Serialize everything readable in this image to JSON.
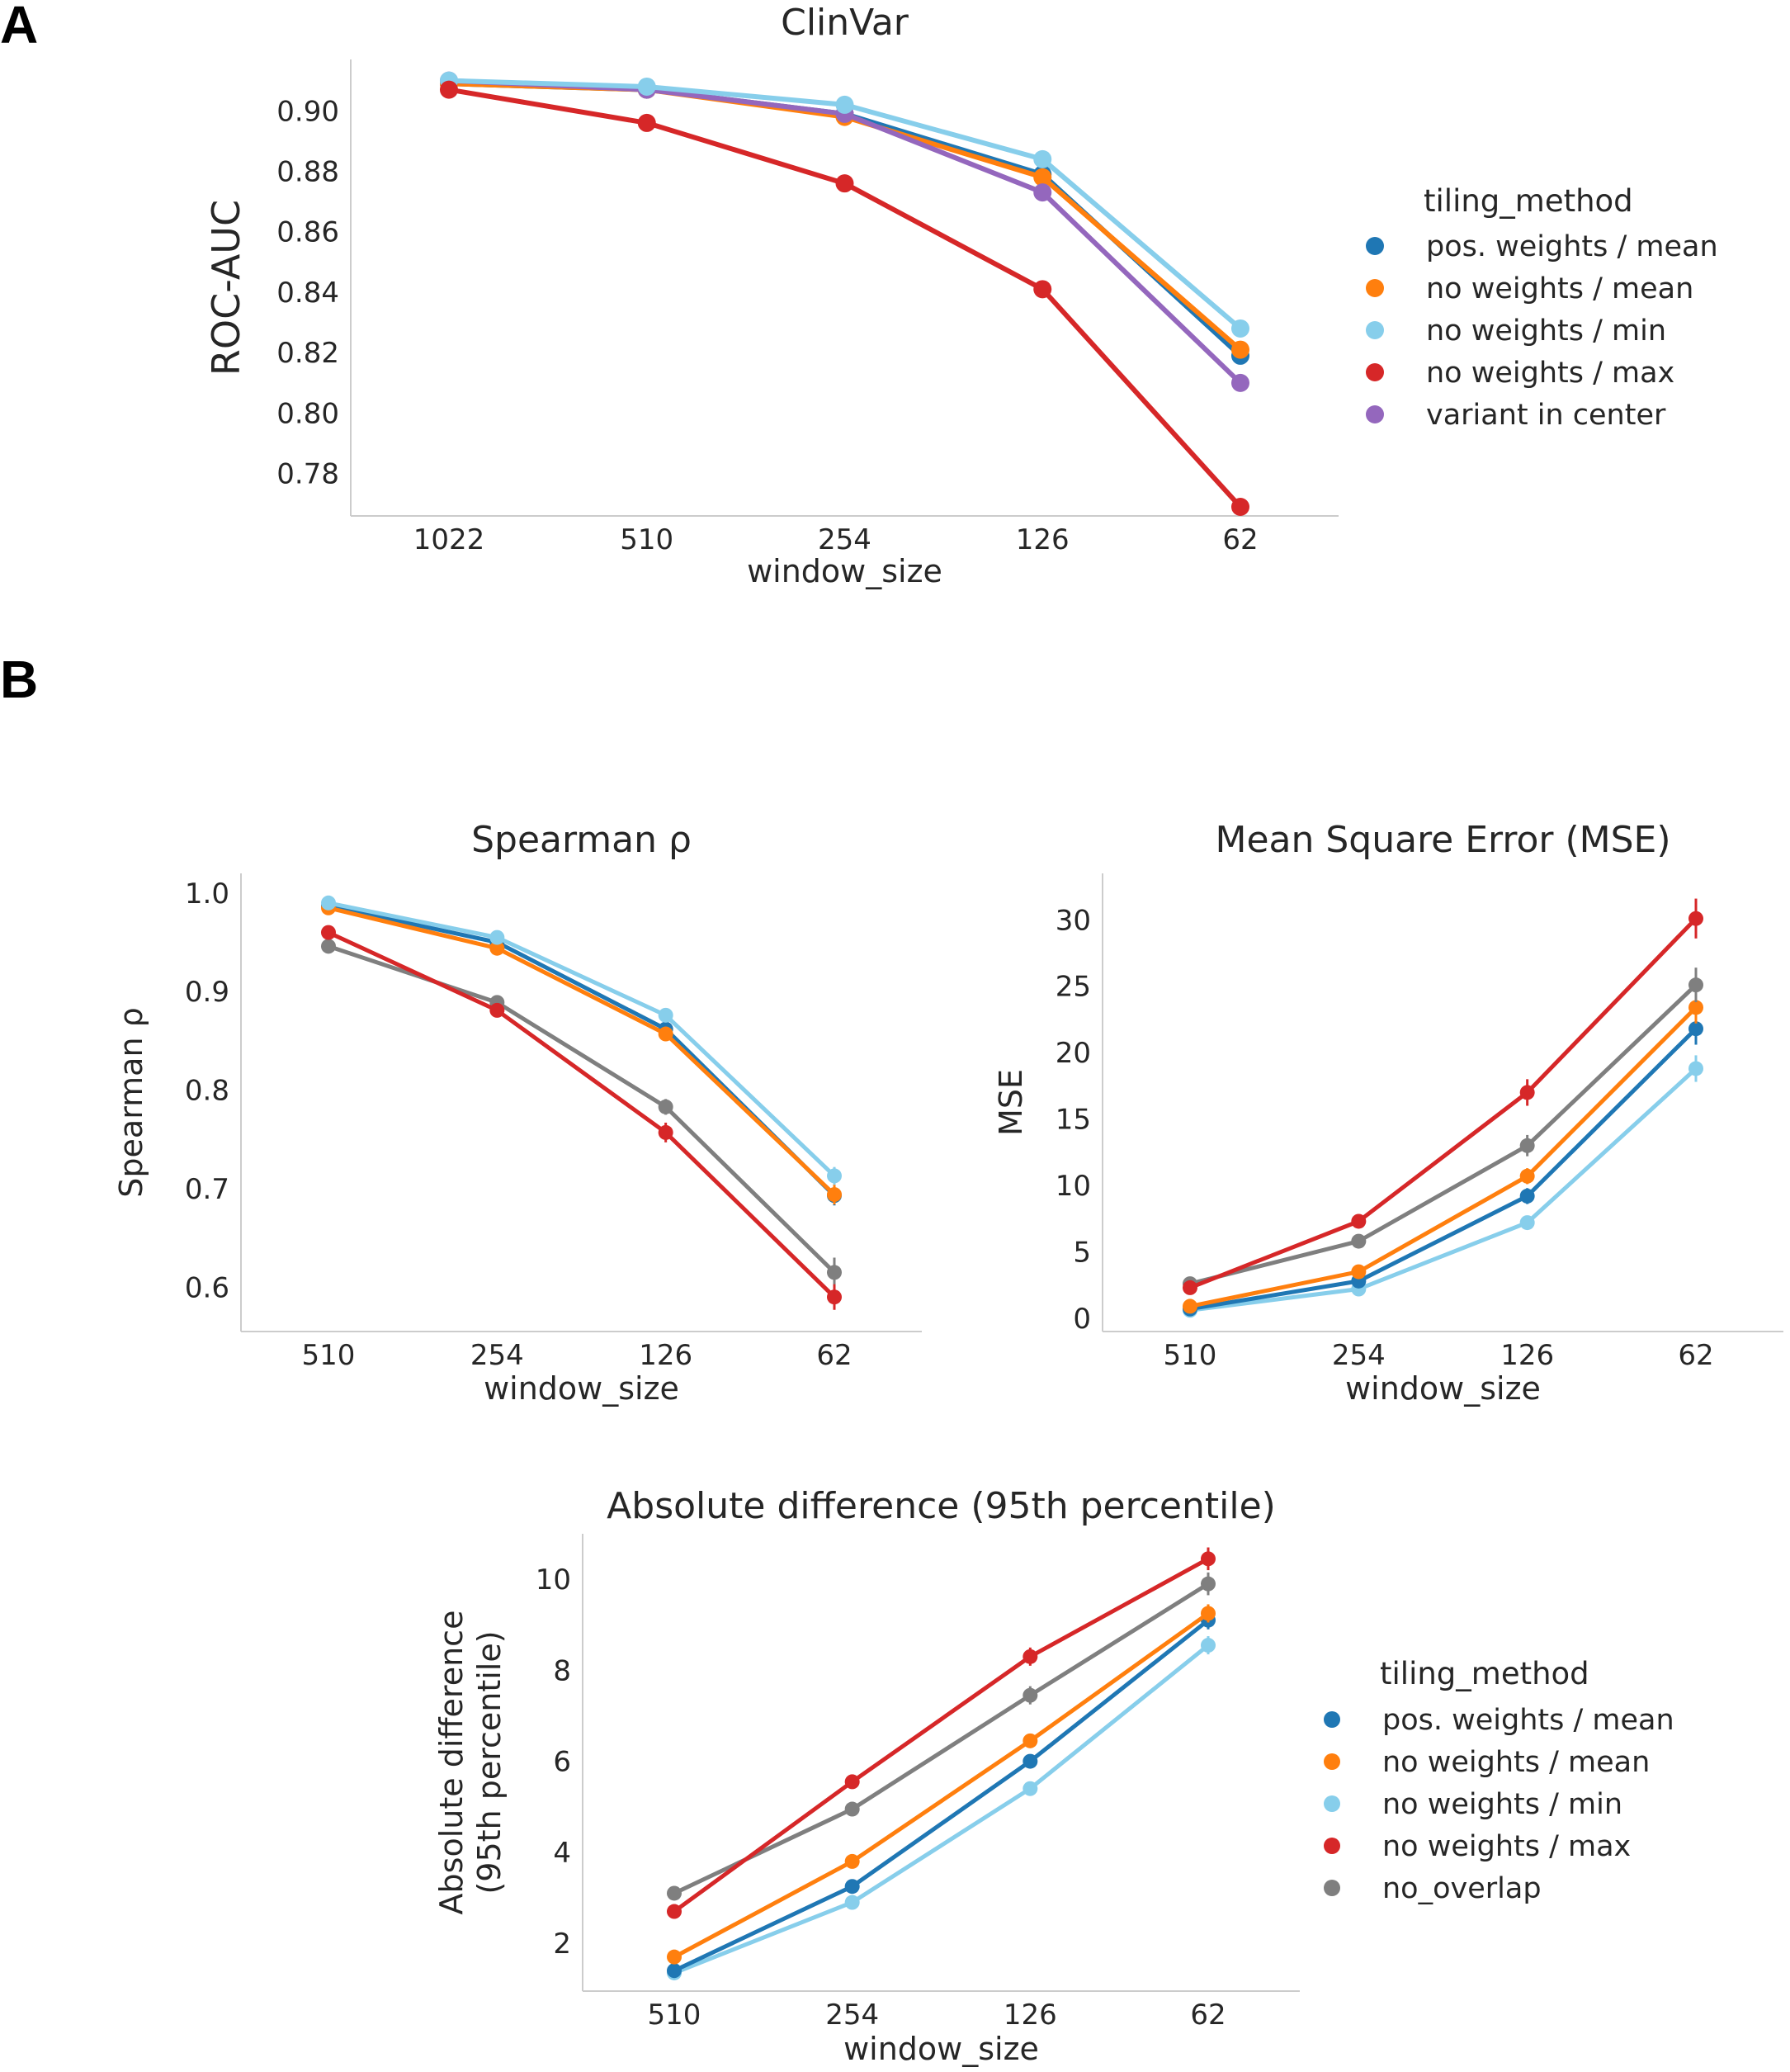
{
  "panels": {
    "a": "A",
    "b": "B"
  },
  "legend_a": {
    "title": "tiling_method",
    "items": [
      {
        "label": "pos. weights / mean",
        "color": "#1f77b4"
      },
      {
        "label": "no weights / mean",
        "color": "#ff7f0e"
      },
      {
        "label": "no weights / min",
        "color": "#87ceeb"
      },
      {
        "label": "no weights / max",
        "color": "#d62728"
      },
      {
        "label": "variant in center",
        "color": "#9467bd"
      }
    ]
  },
  "legend_b": {
    "title": "tiling_method",
    "items": [
      {
        "label": "pos. weights / mean",
        "color": "#1f77b4"
      },
      {
        "label": "no weights / mean",
        "color": "#ff7f0e"
      },
      {
        "label": "no weights / min",
        "color": "#87ceeb"
      },
      {
        "label": "no weights / max",
        "color": "#d62728"
      },
      {
        "label": "no_overlap",
        "color": "#7f7f7f"
      }
    ]
  },
  "chart_data": [
    {
      "id": "clinvar",
      "type": "line",
      "title": "ClinVar",
      "xlabel": "window_size",
      "ylabel": "ROC-AUC",
      "categories": [
        "1022",
        "510",
        "254",
        "126",
        "62"
      ],
      "ylim": [
        0.766,
        0.917
      ],
      "yticks": [
        0.78,
        0.8,
        0.82,
        0.84,
        0.86,
        0.88,
        0.9
      ],
      "ytick_labels": [
        "0.78",
        "0.80",
        "0.82",
        "0.84",
        "0.86",
        "0.88",
        "0.90"
      ],
      "series": [
        {
          "name": "pos. weights / mean",
          "color": "#1f77b4",
          "values": [
            0.909,
            0.907,
            0.899,
            0.879,
            0.819
          ]
        },
        {
          "name": "no weights / mean",
          "color": "#ff7f0e",
          "values": [
            0.909,
            0.907,
            0.898,
            0.878,
            0.821
          ]
        },
        {
          "name": "variant in center",
          "color": "#9467bd",
          "values": [
            0.91,
            0.907,
            0.899,
            0.873,
            0.81
          ]
        },
        {
          "name": "no weights / min",
          "color": "#87ceeb",
          "values": [
            0.91,
            0.908,
            0.902,
            0.884,
            0.828
          ]
        },
        {
          "name": "no weights / max",
          "color": "#d62728",
          "values": [
            0.907,
            0.896,
            0.876,
            0.841,
            0.769
          ]
        }
      ]
    },
    {
      "id": "spearman",
      "type": "line",
      "title": "Spearman ρ",
      "xlabel": "window_size",
      "ylabel": "Spearman ρ",
      "categories": [
        "510",
        "254",
        "126",
        "62"
      ],
      "ylim": [
        0.555,
        1.02
      ],
      "yticks": [
        0.6,
        0.7,
        0.8,
        0.9,
        1.0
      ],
      "ytick_labels": [
        "0.6",
        "0.7",
        "0.8",
        "0.9",
        "1.0"
      ],
      "series": [
        {
          "name": "no_overlap",
          "color": "#7f7f7f",
          "values": [
            0.946,
            0.889,
            0.783,
            0.615
          ],
          "err": [
            0,
            0.004,
            0.008,
            0.015
          ]
        },
        {
          "name": "no weights / max",
          "color": "#d62728",
          "values": [
            0.96,
            0.881,
            0.757,
            0.59
          ],
          "err": [
            0,
            0.004,
            0.01,
            0.013
          ]
        },
        {
          "name": "pos. weights / mean",
          "color": "#1f77b4",
          "values": [
            0.987,
            0.95,
            0.862,
            0.693
          ],
          "err": [
            0,
            0.003,
            0.005,
            0.01
          ]
        },
        {
          "name": "no weights / mean",
          "color": "#ff7f0e",
          "values": [
            0.985,
            0.944,
            0.857,
            0.694
          ],
          "err": [
            0,
            0.003,
            0.005,
            0.01
          ]
        },
        {
          "name": "no weights / min",
          "color": "#87ceeb",
          "values": [
            0.99,
            0.955,
            0.876,
            0.713
          ],
          "err": [
            0,
            0.003,
            0.005,
            0.009
          ]
        }
      ]
    },
    {
      "id": "mse",
      "type": "line",
      "title": "Mean Square Error (MSE)",
      "xlabel": "window_size",
      "ylabel": "MSE",
      "categories": [
        "510",
        "254",
        "126",
        "62"
      ],
      "ylim": [
        -1.0,
        33.5
      ],
      "yticks": [
        0,
        5,
        10,
        15,
        20,
        25,
        30
      ],
      "ytick_labels": [
        "0",
        "5",
        "10",
        "15",
        "20",
        "25",
        "30"
      ],
      "series": [
        {
          "name": "no weights / min",
          "color": "#87ceeb",
          "values": [
            0.6,
            2.2,
            7.2,
            18.8
          ],
          "err": [
            0,
            0.2,
            0.4,
            1.0
          ]
        },
        {
          "name": "pos. weights / mean",
          "color": "#1f77b4",
          "values": [
            0.7,
            2.8,
            9.2,
            21.8
          ],
          "err": [
            0,
            0.2,
            0.6,
            1.2
          ]
        },
        {
          "name": "no weights / mean",
          "color": "#ff7f0e",
          "values": [
            0.9,
            3.5,
            10.7,
            23.4
          ],
          "err": [
            0,
            0.2,
            0.6,
            1.2
          ]
        },
        {
          "name": "no_overlap",
          "color": "#7f7f7f",
          "values": [
            2.6,
            5.8,
            13.0,
            25.1
          ],
          "err": [
            0,
            0.3,
            0.8,
            1.3
          ]
        },
        {
          "name": "no weights / max",
          "color": "#d62728",
          "values": [
            2.3,
            7.3,
            17.0,
            30.1
          ],
          "err": [
            0,
            0.3,
            1.0,
            1.5
          ]
        }
      ]
    },
    {
      "id": "absdiff",
      "type": "line",
      "title": "Absolute difference (95th percentile)",
      "xlabel": "window_size",
      "ylabel": [
        "Absolute difference",
        "(95th percentile)"
      ],
      "categories": [
        "510",
        "254",
        "126",
        "62"
      ],
      "ylim": [
        0.95,
        11.0
      ],
      "yticks": [
        2,
        4,
        6,
        8,
        10
      ],
      "ytick_labels": [
        "2",
        "4",
        "6",
        "8",
        "10"
      ],
      "series": [
        {
          "name": "no weights / min",
          "color": "#87ceeb",
          "values": [
            1.35,
            2.9,
            5.4,
            8.55
          ],
          "err": [
            0,
            0.1,
            0.15,
            0.2
          ]
        },
        {
          "name": "pos. weights / mean",
          "color": "#1f77b4",
          "values": [
            1.4,
            3.25,
            6.0,
            9.1
          ],
          "err": [
            0,
            0.12,
            0.15,
            0.2
          ]
        },
        {
          "name": "no weights / mean",
          "color": "#ff7f0e",
          "values": [
            1.7,
            3.8,
            6.45,
            9.25
          ],
          "err": [
            0,
            0.12,
            0.15,
            0.2
          ]
        },
        {
          "name": "no_overlap",
          "color": "#7f7f7f",
          "values": [
            3.1,
            4.95,
            7.45,
            9.9
          ],
          "err": [
            0,
            0.15,
            0.2,
            0.25
          ]
        },
        {
          "name": "no weights / max",
          "color": "#d62728",
          "values": [
            2.7,
            5.55,
            8.3,
            10.45
          ],
          "err": [
            0,
            0.15,
            0.2,
            0.25
          ]
        }
      ]
    }
  ]
}
